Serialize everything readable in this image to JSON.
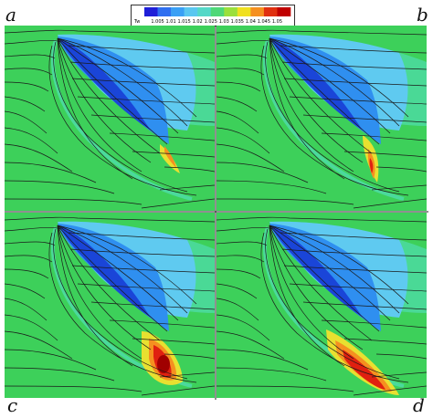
{
  "panels": [
    {
      "id": "a",
      "letter": "a"
    },
    {
      "id": "b",
      "letter": "b"
    },
    {
      "id": "c",
      "letter": "c"
    },
    {
      "id": "d",
      "letter": "d"
    }
  ],
  "legend": {
    "variable": "Tw",
    "levels": [
      "1.005",
      "1.01",
      "1.015",
      "1.02",
      "1.025",
      "1.03",
      "1.035",
      "1.04",
      "1.045",
      "1.05"
    ],
    "colors": [
      "#1f1fd8",
      "#2f6ff0",
      "#3aa0f5",
      "#5ac7f0",
      "#55d8c8",
      "#4fd878",
      "#9be03c",
      "#f0e020",
      "#f59020",
      "#e03010",
      "#c00000"
    ]
  },
  "colors": {
    "background": "#3dd05a",
    "lightBlue": "#5fcaf0",
    "midBlue": "#2f8ff0",
    "deepBlue": "#1a45d8",
    "cyan": "#55e0c8",
    "yellow": "#e8e030",
    "orange": "#f59020",
    "red": "#e02010",
    "darkRed": "#a00000",
    "streamline": "#1a1a1a"
  }
}
